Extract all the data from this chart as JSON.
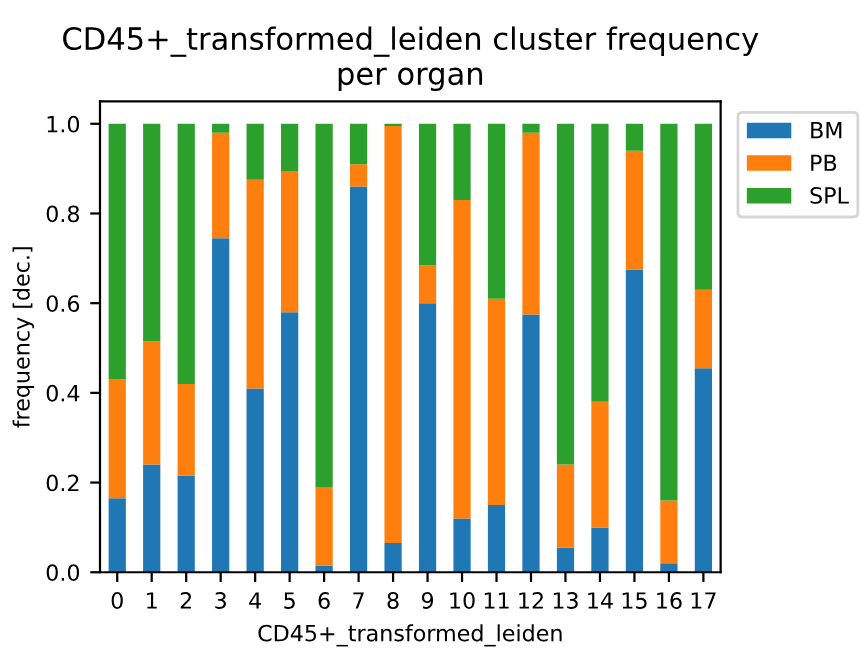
{
  "chart_data": {
    "type": "bar",
    "stacked": true,
    "title": "CD45+_transformed_leiden cluster frequency\nper organ",
    "xlabel": "CD45+_transformed_leiden",
    "ylabel": "frequency [dec.]",
    "categories": [
      "0",
      "1",
      "2",
      "3",
      "4",
      "5",
      "6",
      "7",
      "8",
      "9",
      "10",
      "11",
      "12",
      "13",
      "14",
      "15",
      "16",
      "17"
    ],
    "series": [
      {
        "name": "BM",
        "color": "#1f77b4",
        "values": [
          0.165,
          0.24,
          0.215,
          0.745,
          0.41,
          0.58,
          0.015,
          0.86,
          0.065,
          0.6,
          0.12,
          0.15,
          0.575,
          0.055,
          0.1,
          0.675,
          0.02,
          0.455
        ]
      },
      {
        "name": "PB",
        "color": "#ff7f0e",
        "values": [
          0.265,
          0.275,
          0.205,
          0.235,
          0.465,
          0.315,
          0.175,
          0.05,
          0.93,
          0.085,
          0.71,
          0.46,
          0.405,
          0.185,
          0.28,
          0.265,
          0.14,
          0.175
        ]
      },
      {
        "name": "SPL",
        "color": "#2ca02c",
        "values": [
          0.57,
          0.485,
          0.58,
          0.02,
          0.125,
          0.105,
          0.81,
          0.09,
          0.005,
          0.315,
          0.17,
          0.39,
          0.02,
          0.76,
          0.62,
          0.06,
          0.84,
          0.37
        ]
      }
    ],
    "ylim": [
      0,
      1.05
    ],
    "yticks": [
      {
        "value": 0,
        "label": "0.0"
      },
      {
        "value": 0.2,
        "label": "0.2"
      },
      {
        "value": 0.4,
        "label": "0.4"
      },
      {
        "value": 0.6,
        "label": "0.6"
      },
      {
        "value": 0.8,
        "label": "0.8"
      },
      {
        "value": 1,
        "label": "1.0"
      }
    ],
    "legend": "top right",
    "grid": false
  }
}
